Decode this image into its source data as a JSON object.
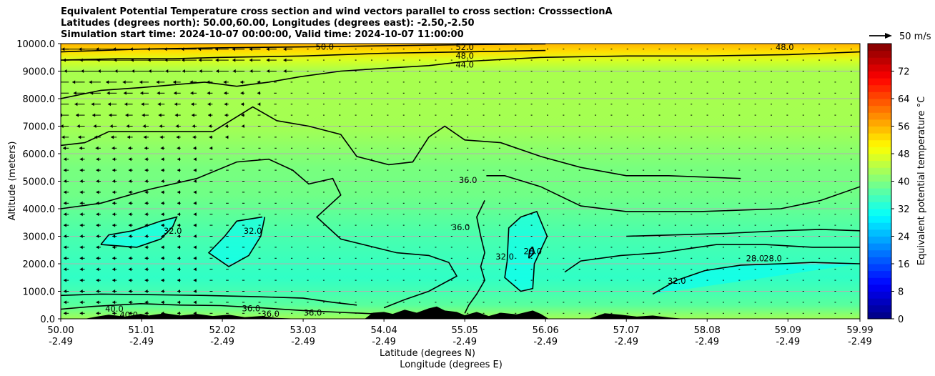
{
  "chart_data": {
    "type": "heatmap",
    "title_lines": [
      "Equivalent Potential Temperature cross section and wind vectors parallel to cross section: CrosssectionA",
      "Latitudes (degrees north): 50.00,60.00, Longitudes (degrees east): -2.50,-2.50",
      "Simulation start time: 2024-10-07 00:00:00, Valid time: 2024-10-07 11:00:00"
    ],
    "xlabel": "Latitude (degrees N)",
    "xlabel2": "Longitude (degrees E)",
    "ylabel": "Altitude (meters)",
    "colorbar_label": "Equivalent potential temperature $^\\circ$C",
    "colorbar_label_display": "Equivalent potential temperature °C",
    "quiver_key_label": "50 m/s",
    "xlim": [
      50.0,
      59.99
    ],
    "ylim": [
      0,
      10000
    ],
    "x_tick_values": [
      50.0,
      51.01,
      52.02,
      53.03,
      54.04,
      55.05,
      56.06,
      57.07,
      58.08,
      59.09,
      59.99
    ],
    "x_tick_labels": [
      "50.00",
      "51.01",
      "52.02",
      "53.03",
      "54.04",
      "55.05",
      "56.06",
      "57.07",
      "58.08",
      "59.09",
      "59.99"
    ],
    "x_tick_labels2": [
      "-2.49",
      "-2.49",
      "-2.49",
      "-2.49",
      "-2.49",
      "-2.49",
      "-2.49",
      "-2.49",
      "-2.49",
      "-2.49",
      "-2.49"
    ],
    "y_tick_values": [
      0,
      1000,
      2000,
      3000,
      4000,
      5000,
      6000,
      7000,
      8000,
      9000,
      10000
    ],
    "y_tick_labels": [
      "0.0",
      "1000.0",
      "2000.0",
      "3000.0",
      "4000.0",
      "5000.0",
      "6000.0",
      "7000.0",
      "8000.0",
      "9000.0",
      "10000.0"
    ],
    "colorbar_range": [
      0,
      80
    ],
    "colorbar_ticks": [
      0,
      8,
      16,
      24,
      32,
      40,
      48,
      56,
      64,
      72
    ],
    "colorbar_tick_labels": [
      "0",
      "8",
      "16",
      "24",
      "32",
      "40",
      "48",
      "56",
      "64",
      "72"
    ],
    "colormap": "jet",
    "grid": true,
    "contour_labels": [
      {
        "text": "50.0",
        "x": 53.3,
        "y": 9880
      },
      {
        "text": "52.0",
        "x": 55.05,
        "y": 9870
      },
      {
        "text": "48.0",
        "x": 55.05,
        "y": 9560
      },
      {
        "text": "44.0",
        "x": 55.05,
        "y": 9240
      },
      {
        "text": "48.0",
        "x": 59.05,
        "y": 9870
      },
      {
        "text": "36.0",
        "x": 55.09,
        "y": 5040
      },
      {
        "text": "36.0",
        "x": 55.0,
        "y": 3320
      },
      {
        "text": "32.0",
        "x": 51.4,
        "y": 3200
      },
      {
        "text": "32.0",
        "x": 52.4,
        "y": 3200
      },
      {
        "text": "32.0",
        "x": 55.55,
        "y": 2260
      },
      {
        "text": "28.0",
        "x": 55.9,
        "y": 2460
      },
      {
        "text": "32.0",
        "x": 57.7,
        "y": 1380
      },
      {
        "text": "28.0",
        "x": 58.68,
        "y": 2200
      },
      {
        "text": "28.0",
        "x": 58.9,
        "y": 2200
      },
      {
        "text": "40.0",
        "x": 50.67,
        "y": 360
      },
      {
        "text": "40.0",
        "x": 50.85,
        "y": 140
      },
      {
        "text": "36.0",
        "x": 52.38,
        "y": 380
      },
      {
        "text": "36.0",
        "x": 52.62,
        "y": 180
      },
      {
        "text": "36.0",
        "x": 53.15,
        "y": 220
      }
    ],
    "contours": [
      {
        "level": 32,
        "points": [
          [
            50.5,
            2700
          ],
          [
            50.95,
            2600
          ],
          [
            51.25,
            2900
          ],
          [
            51.4,
            3350
          ],
          [
            51.45,
            3700
          ],
          [
            51.25,
            3550
          ],
          [
            50.9,
            3200
          ],
          [
            50.6,
            3050
          ],
          [
            50.5,
            2700
          ]
        ]
      },
      {
        "level": 32,
        "points": [
          [
            52.52,
            3700
          ],
          [
            52.2,
            3550
          ],
          [
            52.05,
            3000
          ],
          [
            51.85,
            2400
          ],
          [
            52.1,
            1900
          ],
          [
            52.35,
            2300
          ],
          [
            52.5,
            3000
          ],
          [
            52.55,
            3700
          ]
        ]
      },
      {
        "level": 32,
        "points": [
          [
            55.58,
            2100
          ],
          [
            55.55,
            1500
          ],
          [
            55.75,
            1000
          ],
          [
            55.9,
            1100
          ],
          [
            55.92,
            2000
          ],
          [
            56.08,
            3000
          ],
          [
            55.95,
            3900
          ],
          [
            55.75,
            3700
          ],
          [
            55.6,
            3300
          ],
          [
            55.58,
            2100
          ]
        ]
      },
      {
        "level": 28,
        "points": [
          [
            55.85,
            2200
          ],
          [
            55.86,
            2500
          ],
          [
            55.9,
            2600
          ],
          [
            55.92,
            2400
          ],
          [
            55.85,
            2200
          ]
        ]
      },
      {
        "level": 36,
        "points": [
          [
            55.32,
            5200
          ],
          [
            55.55,
            5200
          ],
          [
            56.0,
            4800
          ],
          [
            56.5,
            4100
          ],
          [
            57.07,
            3900
          ],
          [
            58.0,
            3900
          ],
          [
            59.0,
            4000
          ],
          [
            59.5,
            4300
          ],
          [
            59.99,
            4800
          ]
        ]
      },
      {
        "level": 36,
        "points": [
          [
            55.3,
            4300
          ],
          [
            55.2,
            3700
          ],
          [
            55.25,
            3000
          ],
          [
            55.3,
            2400
          ],
          [
            55.25,
            1900
          ],
          [
            55.3,
            1400
          ],
          [
            55.2,
            900
          ],
          [
            55.1,
            500
          ],
          [
            55.05,
            200
          ]
        ]
      },
      {
        "level": 32,
        "points": [
          [
            57.4,
            900
          ],
          [
            57.7,
            1400
          ],
          [
            58.05,
            1750
          ],
          [
            58.5,
            1950
          ],
          [
            59.0,
            2000
          ],
          [
            59.4,
            2050
          ],
          [
            59.99,
            2000
          ]
        ]
      },
      {
        "level": 36,
        "points": [
          [
            56.3,
            1700
          ],
          [
            56.5,
            2100
          ],
          [
            57.0,
            2300
          ],
          [
            57.5,
            2400
          ],
          [
            58.2,
            2700
          ],
          [
            58.8,
            2700
          ],
          [
            59.4,
            2600
          ],
          [
            59.99,
            2600
          ]
        ]
      },
      {
        "level": 36,
        "points": [
          [
            57.07,
            3000
          ],
          [
            58.3,
            3100
          ],
          [
            59.0,
            3200
          ],
          [
            59.5,
            3250
          ],
          [
            59.99,
            3200
          ]
        ]
      },
      {
        "level": 40,
        "points": [
          [
            50.0,
            4000
          ],
          [
            50.5,
            4200
          ],
          [
            51.1,
            4700
          ],
          [
            51.7,
            5100
          ],
          [
            52.2,
            5700
          ],
          [
            52.6,
            5800
          ],
          [
            52.9,
            5400
          ],
          [
            53.1,
            4900
          ],
          [
            53.4,
            5100
          ],
          [
            53.5,
            4500
          ],
          [
            53.2,
            3700
          ],
          [
            53.5,
            2900
          ],
          [
            54.2,
            2400
          ],
          [
            54.6,
            2300
          ],
          [
            54.85,
            2050
          ],
          [
            54.95,
            1550
          ],
          [
            54.6,
            1000
          ],
          [
            54.3,
            700
          ],
          [
            54.04,
            400
          ]
        ]
      },
      {
        "level": 40,
        "points": [
          [
            50.0,
            6300
          ],
          [
            50.3,
            6400
          ],
          [
            50.6,
            6800
          ],
          [
            51.2,
            6800
          ],
          [
            51.9,
            6800
          ],
          [
            52.4,
            7700
          ],
          [
            52.7,
            7200
          ],
          [
            53.1,
            7000
          ],
          [
            53.5,
            6700
          ],
          [
            53.7,
            5900
          ],
          [
            54.1,
            5600
          ],
          [
            54.4,
            5700
          ],
          [
            54.6,
            6600
          ],
          [
            54.8,
            7000
          ],
          [
            55.05,
            6500
          ],
          [
            55.5,
            6400
          ],
          [
            56.0,
            5900
          ],
          [
            56.5,
            5500
          ],
          [
            57.07,
            5200
          ],
          [
            57.6,
            5200
          ],
          [
            58.5,
            5100
          ]
        ]
      },
      {
        "level": 44,
        "points": [
          [
            50.0,
            8000
          ],
          [
            50.5,
            8300
          ],
          [
            51.0,
            8400
          ],
          [
            51.8,
            8600
          ],
          [
            52.2,
            8450
          ],
          [
            52.6,
            8600
          ],
          [
            53.0,
            8800
          ],
          [
            53.5,
            9000
          ],
          [
            54.04,
            9100
          ],
          [
            54.6,
            9200
          ],
          [
            55.05,
            9350
          ],
          [
            56.0,
            9500
          ],
          [
            57.07,
            9550
          ],
          [
            58.08,
            9550
          ],
          [
            59.09,
            9600
          ],
          [
            59.99,
            9700
          ]
        ]
      },
      {
        "level": 48,
        "points": [
          [
            50.0,
            9400
          ],
          [
            50.7,
            9450
          ],
          [
            51.4,
            9450
          ],
          [
            52.0,
            9500
          ],
          [
            53.03,
            9550
          ],
          [
            54.04,
            9650
          ],
          [
            55.05,
            9700
          ],
          [
            56.06,
            9750
          ]
        ]
      },
      {
        "level": 52,
        "points": [
          [
            50.0,
            9700
          ],
          [
            51.0,
            9800
          ],
          [
            52.02,
            9850
          ],
          [
            53.03,
            9880
          ],
          [
            54.04,
            9920
          ],
          [
            55.05,
            9960
          ],
          [
            56.06,
            9990
          ]
        ]
      },
      {
        "level": 40,
        "points": [
          [
            50.0,
            350
          ],
          [
            50.4,
            450
          ],
          [
            51.0,
            550
          ],
          [
            51.5,
            500
          ],
          [
            52.0,
            480
          ],
          [
            52.5,
            400
          ],
          [
            53.03,
            300
          ],
          [
            53.6,
            220
          ],
          [
            54.04,
            170
          ]
        ]
      },
      {
        "level": 40,
        "points": [
          [
            50.0,
            850
          ],
          [
            50.5,
            900
          ],
          [
            51.0,
            880
          ],
          [
            51.8,
            850
          ],
          [
            52.5,
            800
          ],
          [
            53.03,
            750
          ],
          [
            53.4,
            600
          ],
          [
            53.7,
            500
          ]
        ]
      }
    ],
    "terrain": [
      [
        50.3,
        0
      ],
      [
        50.45,
        80
      ],
      [
        50.6,
        150
      ],
      [
        50.8,
        80
      ],
      [
        51.0,
        180
      ],
      [
        51.1,
        120
      ],
      [
        51.3,
        200
      ],
      [
        51.5,
        120
      ],
      [
        51.7,
        180
      ],
      [
        51.9,
        100
      ],
      [
        52.1,
        150
      ],
      [
        52.3,
        60
      ],
      [
        52.5,
        100
      ],
      [
        52.7,
        30
      ],
      [
        53.0,
        0
      ],
      [
        53.8,
        0
      ],
      [
        53.9,
        220
      ],
      [
        54.04,
        250
      ],
      [
        54.15,
        180
      ],
      [
        54.3,
        330
      ],
      [
        54.45,
        220
      ],
      [
        54.6,
        380
      ],
      [
        54.7,
        450
      ],
      [
        54.8,
        300
      ],
      [
        54.95,
        250
      ],
      [
        55.05,
        130
      ],
      [
        55.2,
        250
      ],
      [
        55.35,
        100
      ],
      [
        55.5,
        220
      ],
      [
        55.7,
        160
      ],
      [
        55.9,
        300
      ],
      [
        56.0,
        180
      ],
      [
        56.1,
        0
      ],
      [
        56.6,
        0
      ],
      [
        56.8,
        200
      ],
      [
        57.0,
        150
      ],
      [
        57.2,
        80
      ],
      [
        57.4,
        120
      ],
      [
        57.6,
        50
      ],
      [
        57.8,
        0
      ]
    ]
  }
}
